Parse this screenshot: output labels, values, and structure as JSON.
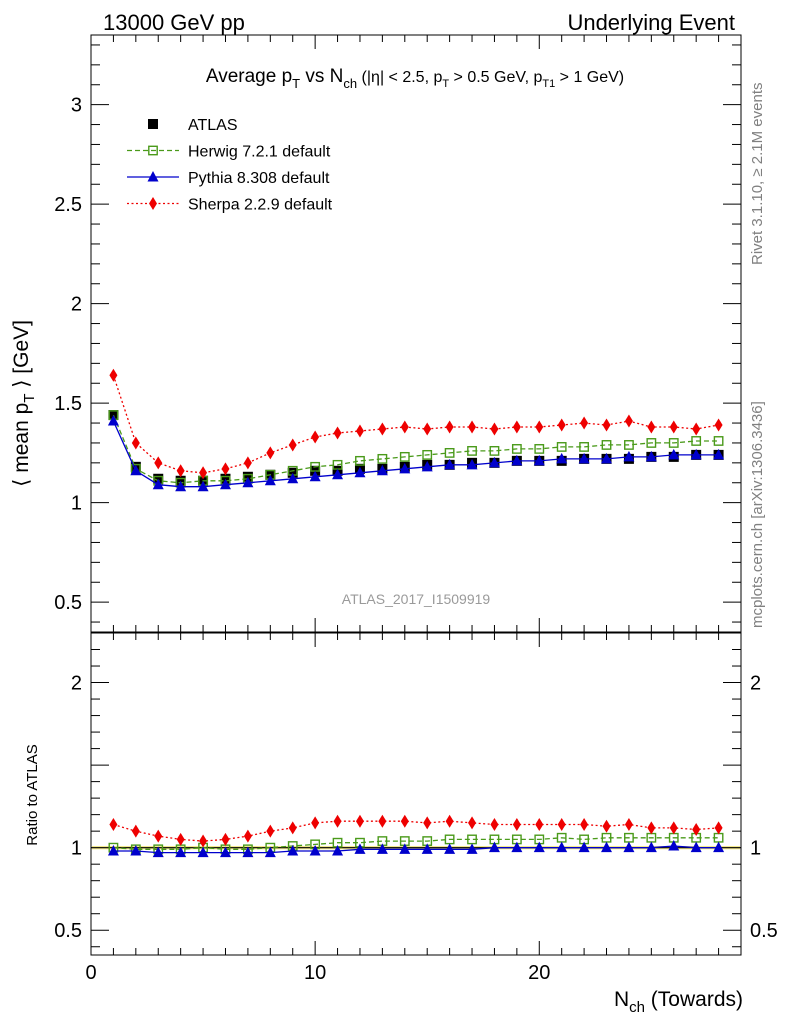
{
  "header": {
    "left": "13000 GeV pp",
    "right": "Underlying Event"
  },
  "side_labels": {
    "rivet": "Rivet 3.1.10, ≥ 2.1M events",
    "mcplots": "mcplots.cern.ch [arXiv:1306.3436]"
  },
  "watermark": "ATLAS_2017_I1509919",
  "chart_data": [
    {
      "type": "scatter",
      "title": "Average pT vs Nch (|η| < 2.5, pT > 0.5 GeV, pT1 > 1 GeV)",
      "ylabel": "⟨ mean pT ⟩ [GeV]",
      "xlim": [
        0,
        29
      ],
      "ylim": [
        0.35,
        3.35
      ],
      "yticks": [
        0.5,
        1,
        1.5,
        2,
        2.5,
        3
      ],
      "legend_position": "top-left",
      "x": [
        1,
        2,
        3,
        4,
        5,
        6,
        7,
        8,
        9,
        10,
        11,
        12,
        13,
        14,
        15,
        16,
        17,
        18,
        19,
        20,
        21,
        22,
        23,
        24,
        25,
        26,
        27,
        28
      ],
      "series": [
        {
          "name": "ATLAS",
          "color": "#000000",
          "marker": "filled-square",
          "line": "none",
          "values": [
            1.44,
            1.18,
            1.12,
            1.11,
            1.11,
            1.12,
            1.13,
            1.14,
            1.15,
            1.16,
            1.16,
            1.17,
            1.17,
            1.18,
            1.19,
            1.19,
            1.2,
            1.2,
            1.21,
            1.21,
            1.21,
            1.22,
            1.22,
            1.22,
            1.23,
            1.23,
            1.24,
            1.24
          ]
        },
        {
          "name": "Herwig 7.2.1 default",
          "color": "#4a9a1a",
          "marker": "open-square",
          "line": "dashed",
          "values": [
            1.44,
            1.17,
            1.11,
            1.1,
            1.11,
            1.11,
            1.12,
            1.14,
            1.16,
            1.18,
            1.19,
            1.21,
            1.22,
            1.23,
            1.24,
            1.25,
            1.26,
            1.26,
            1.27,
            1.27,
            1.28,
            1.28,
            1.29,
            1.29,
            1.3,
            1.3,
            1.31,
            1.31
          ]
        },
        {
          "name": "Pythia 8.308 default",
          "color": "#0000cc",
          "marker": "filled-triangle",
          "line": "solid",
          "values": [
            1.41,
            1.16,
            1.09,
            1.08,
            1.08,
            1.09,
            1.1,
            1.11,
            1.12,
            1.13,
            1.14,
            1.15,
            1.16,
            1.17,
            1.18,
            1.19,
            1.19,
            1.2,
            1.21,
            1.21,
            1.22,
            1.22,
            1.22,
            1.23,
            1.23,
            1.24,
            1.24,
            1.24
          ]
        },
        {
          "name": "Sherpa 2.2.9 default",
          "color": "#ee0000",
          "marker": "filled-diamond",
          "line": "dotted",
          "values": [
            1.64,
            1.3,
            1.2,
            1.16,
            1.15,
            1.17,
            1.2,
            1.25,
            1.29,
            1.33,
            1.35,
            1.36,
            1.37,
            1.38,
            1.37,
            1.38,
            1.38,
            1.37,
            1.38,
            1.38,
            1.39,
            1.4,
            1.39,
            1.41,
            1.38,
            1.38,
            1.37,
            1.39
          ]
        }
      ]
    },
    {
      "type": "scatter",
      "ylabel": "Ratio to ATLAS",
      "xlabel": "Nch (Towards)",
      "xlim": [
        0,
        29
      ],
      "ylim": [
        0.35,
        2.3
      ],
      "yticks": [
        0.5,
        1,
        2
      ],
      "xticks": [
        0,
        10,
        20
      ],
      "x": [
        1,
        2,
        3,
        4,
        5,
        6,
        7,
        8,
        9,
        10,
        11,
        12,
        13,
        14,
        15,
        16,
        17,
        18,
        19,
        20,
        21,
        22,
        23,
        24,
        25,
        26,
        27,
        28
      ],
      "reference_line": 1,
      "series": [
        {
          "name": "Herwig 7.2.1 default",
          "color": "#4a9a1a",
          "marker": "open-square",
          "line": "dashed",
          "values": [
            1.0,
            0.99,
            0.99,
            0.99,
            1.0,
            0.99,
            0.99,
            1.0,
            1.01,
            1.02,
            1.03,
            1.03,
            1.04,
            1.04,
            1.04,
            1.05,
            1.05,
            1.05,
            1.05,
            1.05,
            1.06,
            1.05,
            1.06,
            1.06,
            1.06,
            1.06,
            1.06,
            1.06
          ]
        },
        {
          "name": "Pythia 8.308 default",
          "color": "#0000cc",
          "marker": "filled-triangle",
          "line": "solid",
          "values": [
            0.98,
            0.98,
            0.97,
            0.97,
            0.97,
            0.97,
            0.97,
            0.97,
            0.98,
            0.98,
            0.98,
            0.99,
            0.99,
            0.99,
            0.99,
            0.99,
            0.99,
            1.0,
            1.0,
            1.0,
            1.0,
            1.0,
            1.0,
            1.0,
            1.0,
            1.01,
            1.0,
            1.0
          ]
        },
        {
          "name": "Sherpa 2.2.9 default",
          "color": "#ee0000",
          "marker": "filled-diamond",
          "line": "dotted",
          "values": [
            1.14,
            1.1,
            1.07,
            1.05,
            1.04,
            1.05,
            1.07,
            1.1,
            1.12,
            1.15,
            1.16,
            1.16,
            1.16,
            1.16,
            1.15,
            1.16,
            1.15,
            1.14,
            1.14,
            1.14,
            1.14,
            1.14,
            1.13,
            1.14,
            1.12,
            1.12,
            1.11,
            1.12
          ]
        }
      ]
    }
  ]
}
